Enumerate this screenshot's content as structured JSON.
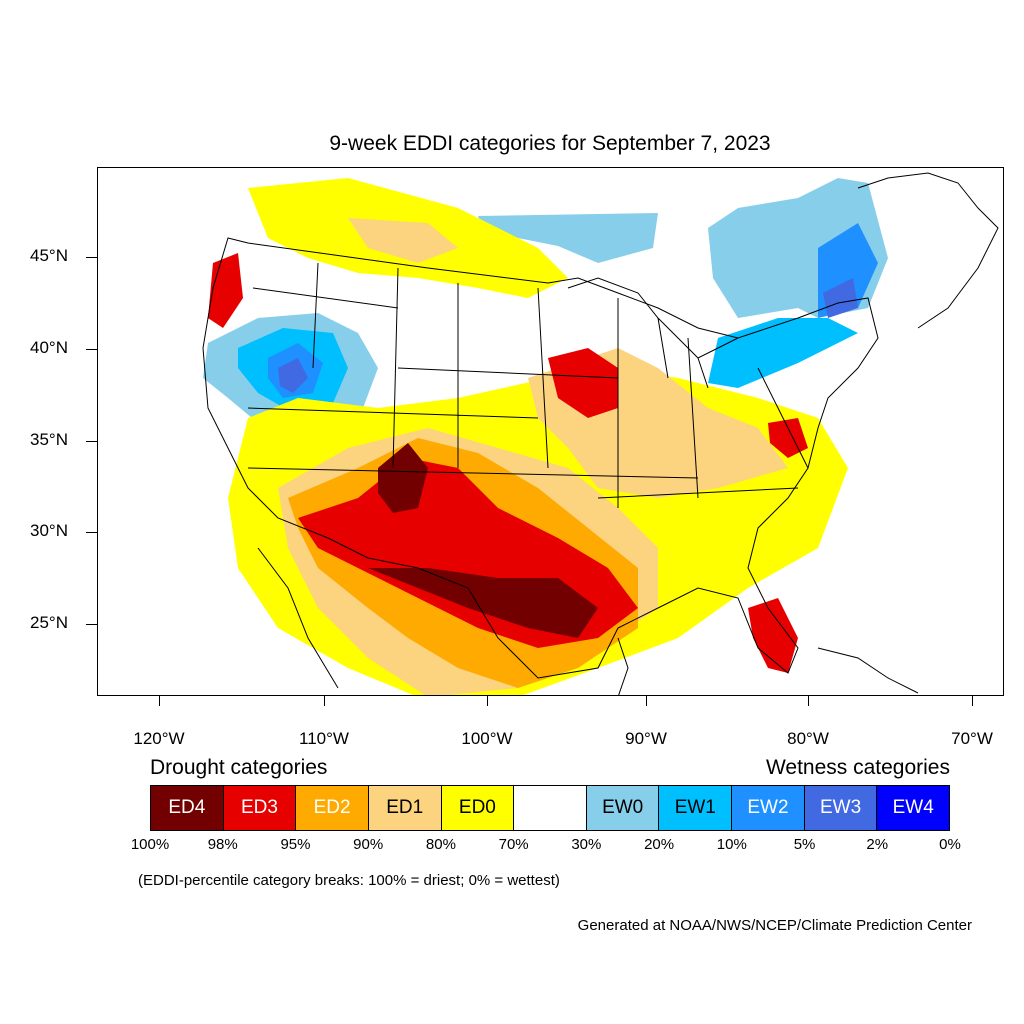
{
  "title": "9-week EDDI categories for September 7, 2023",
  "lat_labels": [
    "45°N",
    "40°N",
    "35°N",
    "30°N",
    "25°N"
  ],
  "lon_labels": [
    "120°W",
    "110°W",
    "100°W",
    "90°W",
    "80°W",
    "70°W"
  ],
  "legend": {
    "drought_title": "Drought categories",
    "wetness_title": "Wetness categories",
    "categories": [
      {
        "label": "ED4",
        "color": "#730000",
        "text_color": "#ffffff"
      },
      {
        "label": "ED3",
        "color": "#e60000",
        "text_color": "#ffffff"
      },
      {
        "label": "ED2",
        "color": "#ffaa00",
        "text_color": "#ffffff"
      },
      {
        "label": "ED1",
        "color": "#fcd37f",
        "text_color": "#000000"
      },
      {
        "label": "ED0",
        "color": "#ffff00",
        "text_color": "#000000"
      },
      {
        "label": "",
        "color": "#ffffff",
        "text_color": "#000000"
      },
      {
        "label": "EW0",
        "color": "#87ceeb",
        "text_color": "#000000"
      },
      {
        "label": "EW1",
        "color": "#00bfff",
        "text_color": "#000000"
      },
      {
        "label": "EW2",
        "color": "#1e90ff",
        "text_color": "#ffffff"
      },
      {
        "label": "EW3",
        "color": "#4169e1",
        "text_color": "#ffffff"
      },
      {
        "label": "EW4",
        "color": "#0000ff",
        "text_color": "#ffffff"
      }
    ],
    "percentiles": [
      "100%",
      "98%",
      "95%",
      "90%",
      "80%",
      "70%",
      "30%",
      "20%",
      "10%",
      "5%",
      "2%",
      "0%"
    ]
  },
  "note": "(EDDI-percentile category breaks: 100% = driest; 0% = wettest)",
  "credit": "Generated at NOAA/NWS/NCEP/Climate Prediction Center"
}
